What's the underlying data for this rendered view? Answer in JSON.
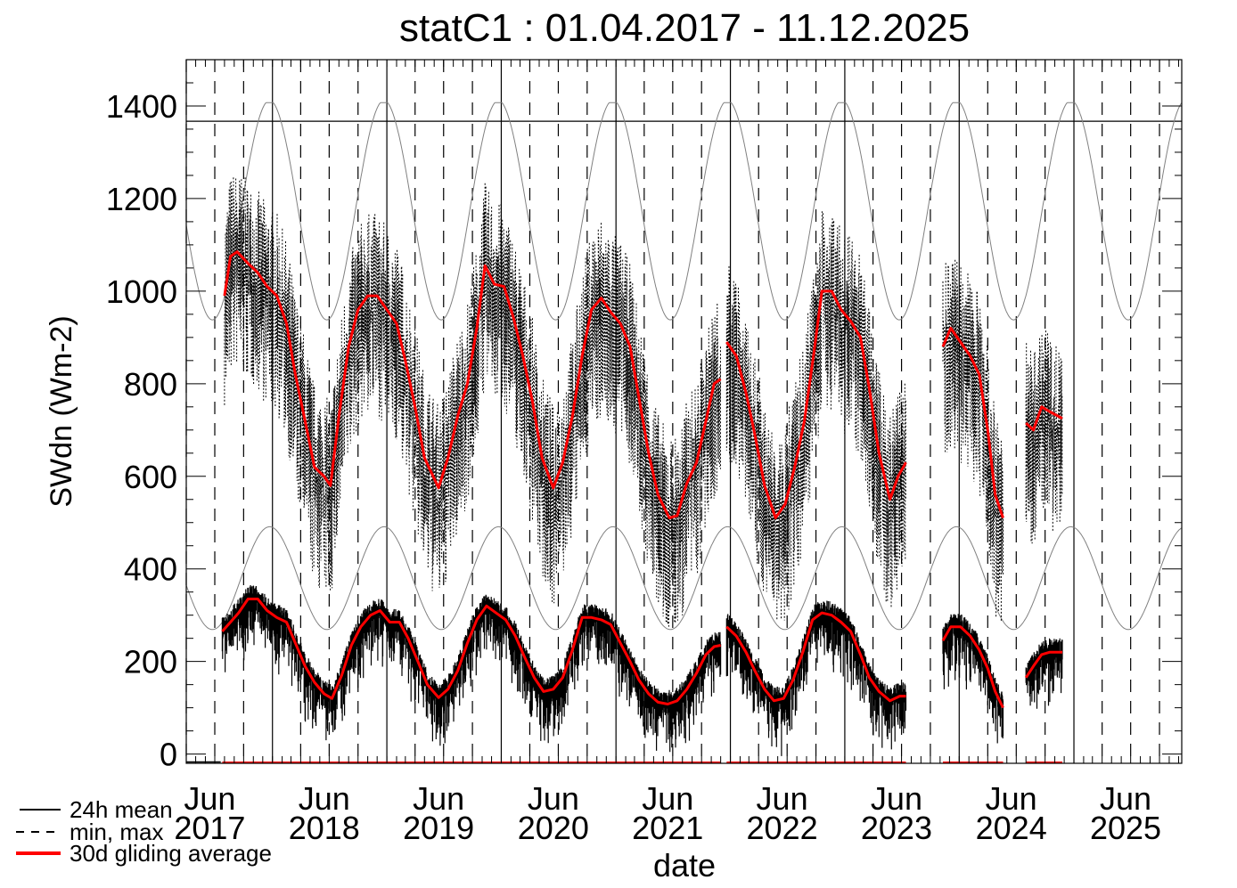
{
  "chart_data": {
    "type": "line",
    "title": "statC1 : 01.04.2017 - 11.12.2025",
    "xlabel": "date",
    "ylabel": "SWdn (Wm-2)",
    "xlim": [
      "2017-04-01",
      "2025-12-11"
    ],
    "ylim": [
      -20,
      1500
    ],
    "yticks": [
      0,
      200,
      400,
      600,
      800,
      1000,
      1200,
      1400
    ],
    "xticks": [
      {
        "date": "2017-06-15",
        "month": "Jun",
        "year": "2017"
      },
      {
        "date": "2018-06-15",
        "month": "Jun",
        "year": "2018"
      },
      {
        "date": "2019-06-15",
        "month": "Jun",
        "year": "2019"
      },
      {
        "date": "2020-06-15",
        "month": "Jun",
        "year": "2020"
      },
      {
        "date": "2021-06-15",
        "month": "Jun",
        "year": "2021"
      },
      {
        "date": "2022-06-15",
        "month": "Jun",
        "year": "2022"
      },
      {
        "date": "2023-06-15",
        "month": "Jun",
        "year": "2023"
      },
      {
        "date": "2024-06-15",
        "month": "Jun",
        "year": "2024"
      },
      {
        "date": "2025-06-15",
        "month": "Jun",
        "year": "2025"
      }
    ],
    "reference_line": 1367,
    "legend": {
      "placement": "bottom-left",
      "entries": [
        {
          "label": "24h mean",
          "style": "solid",
          "color": "#000000"
        },
        {
          "label": "min, max",
          "style": "dashed",
          "color": "#000000"
        },
        {
          "label": "30d gliding average",
          "style": "thick",
          "color": "#ff0000"
        }
      ]
    },
    "toa_max_curve": {
      "mean": 1175,
      "amplitude": 237,
      "peak_day_of_year": 356,
      "color": "#808080"
    },
    "toa_mean_curve": {
      "mean": 380,
      "amplitude": 111,
      "peak_day_of_year": 356,
      "color": "#808080"
    },
    "series": [
      {
        "name": "30d gliding average of max",
        "color": "#ff0000",
        "segments": [
          [
            [
              "2017-08-01",
              990
            ],
            [
              "2017-08-20",
              1075
            ],
            [
              "2017-09-10",
              1085
            ],
            [
              "2017-10-15",
              1060
            ],
            [
              "2017-11-15",
              1040
            ],
            [
              "2017-12-15",
              1010
            ],
            [
              "2018-01-15",
              990
            ],
            [
              "2018-02-15",
              930
            ],
            [
              "2018-03-15",
              820
            ],
            [
              "2018-04-15",
              720
            ],
            [
              "2018-05-15",
              620
            ],
            [
              "2018-06-15",
              600
            ],
            [
              "2018-07-05",
              580
            ],
            [
              "2018-08-01",
              730
            ],
            [
              "2018-09-01",
              880
            ],
            [
              "2018-10-01",
              960
            ],
            [
              "2018-11-01",
              990
            ],
            [
              "2018-12-01",
              990
            ],
            [
              "2019-01-01",
              960
            ],
            [
              "2019-02-01",
              930
            ],
            [
              "2019-03-01",
              850
            ],
            [
              "2019-04-01",
              750
            ],
            [
              "2019-05-01",
              640
            ],
            [
              "2019-06-15",
              575
            ],
            [
              "2019-07-15",
              640
            ],
            [
              "2019-08-15",
              730
            ],
            [
              "2019-09-15",
              800
            ],
            [
              "2019-10-15",
              920
            ],
            [
              "2019-11-10",
              1055
            ],
            [
              "2019-12-10",
              1015
            ],
            [
              "2020-01-10",
              1010
            ],
            [
              "2020-02-10",
              940
            ],
            [
              "2020-03-10",
              860
            ],
            [
              "2020-04-10",
              760
            ],
            [
              "2020-05-10",
              640
            ],
            [
              "2020-06-15",
              575
            ],
            [
              "2020-07-15",
              630
            ],
            [
              "2020-08-15",
              730
            ],
            [
              "2020-09-15",
              860
            ],
            [
              "2020-10-15",
              960
            ],
            [
              "2020-11-15",
              985
            ],
            [
              "2020-12-15",
              955
            ],
            [
              "2021-01-15",
              930
            ],
            [
              "2021-02-15",
              880
            ],
            [
              "2021-03-15",
              770
            ],
            [
              "2021-04-15",
              650
            ],
            [
              "2021-05-15",
              560
            ],
            [
              "2021-06-20",
              510
            ],
            [
              "2021-07-15",
              515
            ],
            [
              "2021-08-15",
              585
            ],
            [
              "2021-09-15",
              630
            ],
            [
              "2021-10-15",
              720
            ],
            [
              "2021-11-10",
              800
            ],
            [
              "2021-12-01",
              810
            ]
          ],
          [
            [
              "2021-12-20",
              890
            ],
            [
              "2022-01-20",
              860
            ],
            [
              "2022-02-20",
              780
            ],
            [
              "2022-03-20",
              690
            ],
            [
              "2022-04-20",
              580
            ],
            [
              "2022-05-25",
              510
            ],
            [
              "2022-06-25",
              540
            ],
            [
              "2022-07-25",
              620
            ],
            [
              "2022-08-25",
              720
            ],
            [
              "2022-09-25",
              870
            ],
            [
              "2022-10-20",
              1000
            ],
            [
              "2022-11-20",
              1000
            ],
            [
              "2022-12-20",
              960
            ],
            [
              "2023-01-20",
              935
            ],
            [
              "2023-02-20",
              900
            ],
            [
              "2023-03-20",
              790
            ],
            [
              "2023-04-20",
              650
            ],
            [
              "2023-05-25",
              550
            ],
            [
              "2023-06-20",
              600
            ],
            [
              "2023-07-15",
              630
            ]
          ],
          [
            [
              "2023-11-10",
              880
            ],
            [
              "2023-12-05",
              920
            ],
            [
              "2024-01-05",
              890
            ],
            [
              "2024-02-05",
              860
            ],
            [
              "2024-03-05",
              820
            ],
            [
              "2024-04-01",
              700
            ],
            [
              "2024-04-25",
              560
            ],
            [
              "2024-05-20",
              510
            ]
          ],
          [
            [
              "2024-08-01",
              715
            ],
            [
              "2024-08-25",
              700
            ],
            [
              "2024-09-20",
              750
            ],
            [
              "2024-10-15",
              740
            ],
            [
              "2024-11-25",
              725
            ]
          ]
        ]
      },
      {
        "name": "30d gliding average of 24h mean",
        "color": "#ff0000",
        "segments": [
          [
            [
              "2017-07-25",
              265
            ],
            [
              "2017-08-20",
              285
            ],
            [
              "2017-09-15",
              305
            ],
            [
              "2017-10-15",
              335
            ],
            [
              "2017-11-15",
              335
            ],
            [
              "2017-12-15",
              310
            ],
            [
              "2018-01-15",
              295
            ],
            [
              "2018-02-15",
              285
            ],
            [
              "2018-03-15",
              240
            ],
            [
              "2018-04-15",
              190
            ],
            [
              "2018-05-15",
              155
            ],
            [
              "2018-06-15",
              130
            ],
            [
              "2018-07-10",
              120
            ],
            [
              "2018-08-10",
              170
            ],
            [
              "2018-09-10",
              235
            ],
            [
              "2018-10-10",
              275
            ],
            [
              "2018-11-10",
              300
            ],
            [
              "2018-12-10",
              310
            ],
            [
              "2019-01-10",
              285
            ],
            [
              "2019-02-10",
              285
            ],
            [
              "2019-03-10",
              250
            ],
            [
              "2019-04-10",
              200
            ],
            [
              "2019-05-10",
              150
            ],
            [
              "2019-06-15",
              122
            ],
            [
              "2019-07-15",
              140
            ],
            [
              "2019-08-15",
              180
            ],
            [
              "2019-09-15",
              240
            ],
            [
              "2019-10-15",
              290
            ],
            [
              "2019-11-15",
              320
            ],
            [
              "2019-12-15",
              305
            ],
            [
              "2020-01-15",
              290
            ],
            [
              "2020-02-15",
              255
            ],
            [
              "2020-03-15",
              210
            ],
            [
              "2020-04-15",
              165
            ],
            [
              "2020-05-15",
              135
            ],
            [
              "2020-06-15",
              140
            ],
            [
              "2020-07-15",
              165
            ],
            [
              "2020-08-15",
              225
            ],
            [
              "2020-09-15",
              295
            ],
            [
              "2020-10-15",
              295
            ],
            [
              "2020-11-15",
              290
            ],
            [
              "2020-12-15",
              280
            ],
            [
              "2021-01-15",
              240
            ],
            [
              "2021-02-15",
              200
            ],
            [
              "2021-03-15",
              160
            ],
            [
              "2021-04-15",
              130
            ],
            [
              "2021-05-15",
              112
            ],
            [
              "2021-06-15",
              108
            ],
            [
              "2021-07-15",
              115
            ],
            [
              "2021-08-15",
              140
            ],
            [
              "2021-09-15",
              175
            ],
            [
              "2021-10-15",
              215
            ],
            [
              "2021-11-10",
              232
            ],
            [
              "2021-12-01",
              235
            ]
          ],
          [
            [
              "2021-12-20",
              275
            ],
            [
              "2022-01-20",
              255
            ],
            [
              "2022-02-20",
              220
            ],
            [
              "2022-03-20",
              180
            ],
            [
              "2022-04-20",
              140
            ],
            [
              "2022-05-20",
              115
            ],
            [
              "2022-06-20",
              120
            ],
            [
              "2022-07-20",
              160
            ],
            [
              "2022-08-20",
              220
            ],
            [
              "2022-09-20",
              290
            ],
            [
              "2022-10-20",
              305
            ],
            [
              "2022-11-20",
              300
            ],
            [
              "2022-12-20",
              285
            ],
            [
              "2023-01-20",
              265
            ],
            [
              "2023-02-20",
              215
            ],
            [
              "2023-03-20",
              165
            ],
            [
              "2023-04-20",
              135
            ],
            [
              "2023-05-25",
              115
            ],
            [
              "2023-06-25",
              125
            ],
            [
              "2023-07-15",
              125
            ]
          ],
          [
            [
              "2023-11-10",
              245
            ],
            [
              "2023-12-05",
              275
            ],
            [
              "2024-01-05",
              275
            ],
            [
              "2024-02-05",
              255
            ],
            [
              "2024-03-05",
              225
            ],
            [
              "2024-04-01",
              185
            ],
            [
              "2024-04-25",
              135
            ],
            [
              "2024-05-20",
              100
            ]
          ],
          [
            [
              "2024-08-01",
              165
            ],
            [
              "2024-08-25",
              190
            ],
            [
              "2024-09-20",
              215
            ],
            [
              "2024-10-15",
              220
            ],
            [
              "2024-11-25",
              220
            ]
          ]
        ]
      }
    ]
  }
}
